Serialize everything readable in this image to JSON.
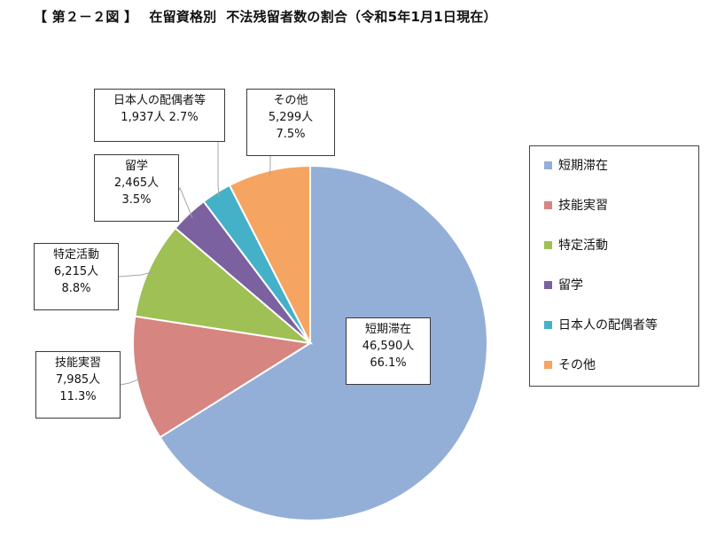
{
  "title": "【 第２－２図 】　 在留資格別  不法残留者数の割合（令和5年1月1日現在）",
  "chart_data": {
    "type": "pie",
    "title": "【 第２－２図 】　 在留資格別  不法残留者数の割合（令和5年1月1日現在）",
    "categories": [
      "短期滞在",
      "技能実習",
      "特定活動",
      "留学",
      "日本人の配偶者等",
      "その他"
    ],
    "values": [
      46590,
      7985,
      6215,
      2465,
      1937,
      5299
    ],
    "value_labels": [
      "46,590人",
      "7,985人",
      "6,215人",
      "2,465人",
      "1,937人",
      "5,299人"
    ],
    "percent_labels": [
      "66.1%",
      "11.3%",
      "8.8%",
      "3.5%",
      "2.7%",
      "7.5%"
    ],
    "colors": [
      "#93afd7",
      "#d68580",
      "#9fc055",
      "#7c61a0",
      "#45b1c9",
      "#f5a462"
    ],
    "start_angle": "12 o'clock",
    "direction": "clockwise",
    "legend_position": "right",
    "grid": false
  }
}
